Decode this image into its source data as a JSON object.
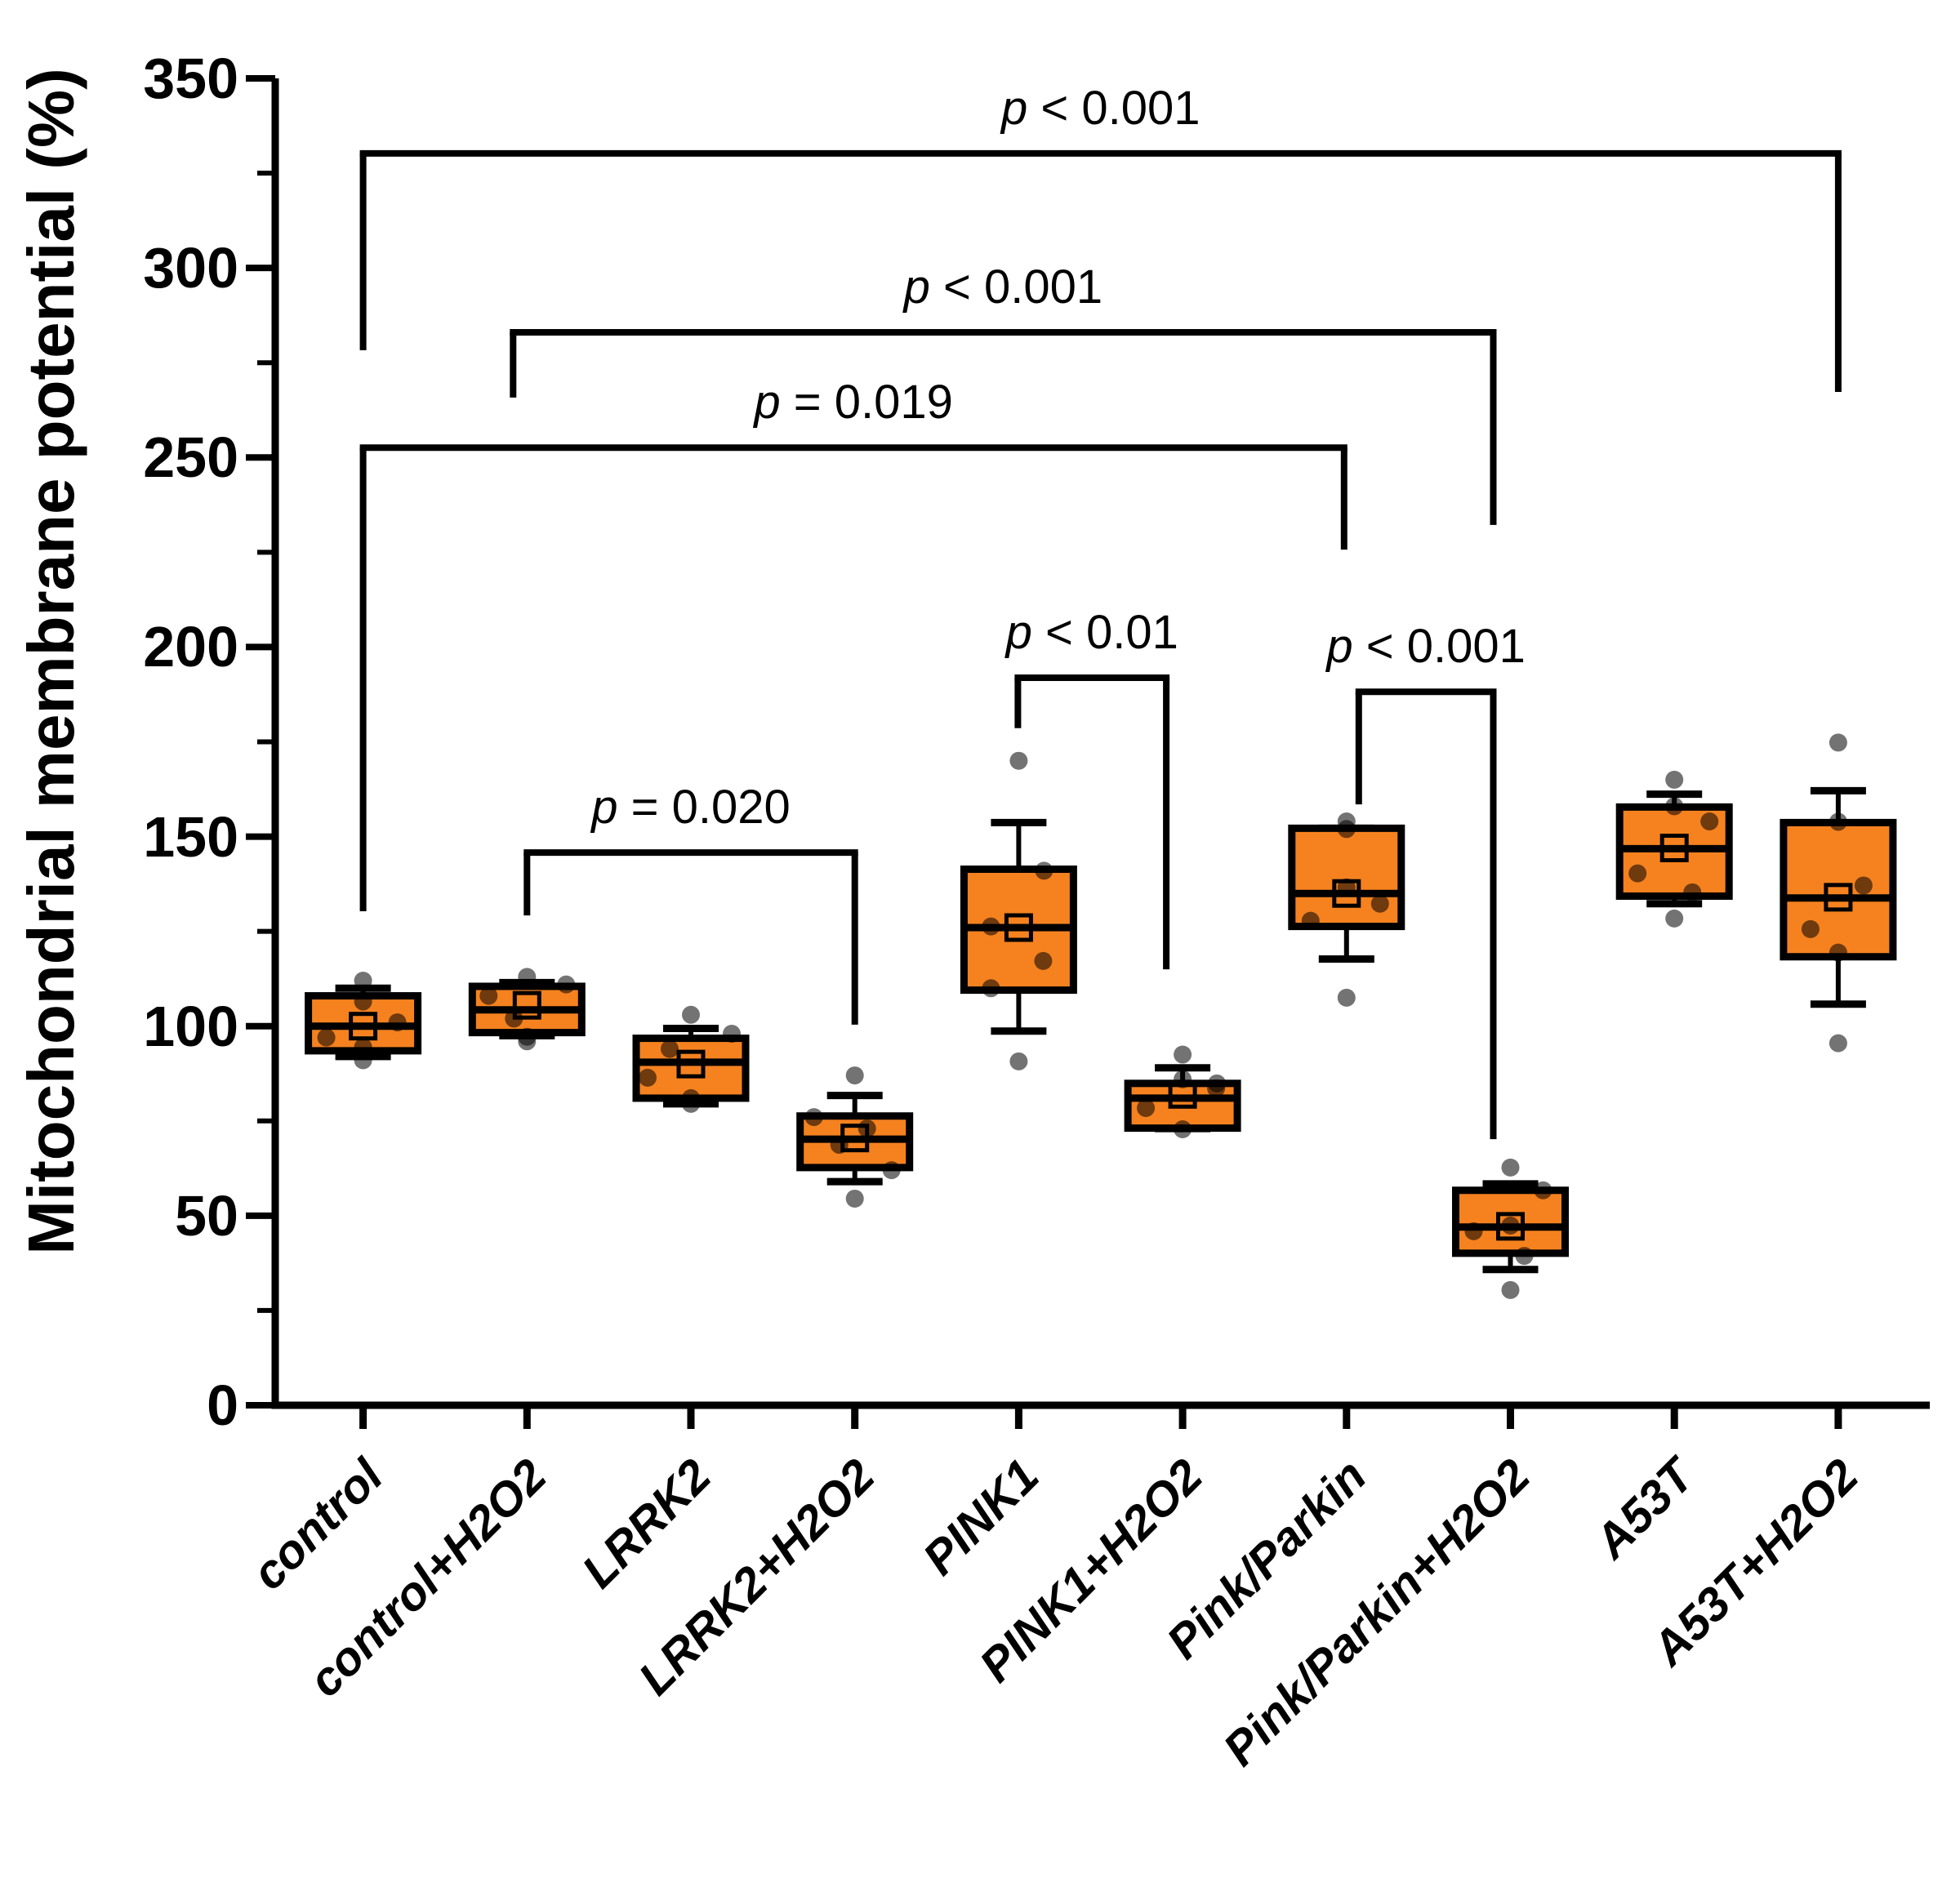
{
  "figure": {
    "background": "#ffffff",
    "line_color": "#000000",
    "box_fill_color": "#F5821F",
    "point_color": "#000000",
    "point_opacity": 0.55
  },
  "chart_data": {
    "type": "box",
    "title": "",
    "xlabel": "",
    "ylabel": "Mitochondrial membrane potential (%)",
    "ylim": [
      0,
      350
    ],
    "grid": false,
    "legend": "none",
    "y_ticks": [
      0,
      50,
      100,
      150,
      200,
      250,
      300,
      350
    ],
    "y_minor_ticks": [
      25,
      75,
      125,
      175,
      225,
      275,
      325
    ],
    "categories": [
      "control",
      "control+H2O2",
      "LRRK2",
      "LRRK2+H2O2",
      "PINK1",
      "PINK1+H2O2",
      "Pink/Parkin",
      "Pink/Parkin+H2O2",
      "A53T",
      "A53T+H2O2"
    ],
    "series": [
      {
        "label": "control",
        "q1": 93.5,
        "median": 100,
        "q3": 108,
        "mean": 100,
        "whisker_low": 92,
        "whisker_high": 110,
        "points": [
          [
            0,
            112
          ],
          [
            0,
            106.5
          ],
          [
            42,
            101
          ],
          [
            -45,
            97
          ],
          [
            0,
            94.5
          ],
          [
            0,
            91
          ]
        ]
      },
      {
        "label": "control+H2O2",
        "q1": 98.3,
        "median": 104.3,
        "q3": 110.5,
        "mean": 105.5,
        "whisker_low": 97.5,
        "whisker_high": 111.5,
        "points": [
          [
            0,
            113
          ],
          [
            48,
            111
          ],
          [
            -47,
            108
          ],
          [
            -16,
            102
          ],
          [
            0,
            97.2
          ],
          [
            0,
            96
          ]
        ]
      },
      {
        "label": "LRRK2",
        "q1": 81,
        "median": 90.5,
        "q3": 96.8,
        "mean": 90,
        "whisker_low": 79.5,
        "whisker_high": 99.4,
        "points": [
          [
            0,
            103
          ],
          [
            50,
            98
          ],
          [
            -26,
            94
          ],
          [
            -53,
            86.4
          ],
          [
            0,
            81
          ],
          [
            0,
            79.5
          ]
        ]
      },
      {
        "label": "LRRK2+H2O2",
        "q1": 62.7,
        "median": 70.2,
        "q3": 76.3,
        "mean": 70.5,
        "whisker_low": 59,
        "whisker_high": 81.7,
        "points": [
          [
            0,
            87
          ],
          [
            -50,
            76
          ],
          [
            15,
            73
          ],
          [
            -19,
            68.7
          ],
          [
            45,
            62
          ],
          [
            0,
            54.5
          ]
        ]
      },
      {
        "label": "PINK1",
        "q1": 109.5,
        "median": 126,
        "q3": 141.4,
        "mean": 126,
        "whisker_low": 98.7,
        "whisker_high": 153.7,
        "points": [
          [
            0,
            170
          ],
          [
            31,
            141
          ],
          [
            -34,
            126.3
          ],
          [
            30,
            117.2
          ],
          [
            -34,
            110
          ],
          [
            0,
            90.7
          ]
        ]
      },
      {
        "label": "PINK1+H2O2",
        "q1": 73.1,
        "median": 81,
        "q3": 84.9,
        "mean": 82,
        "whisker_low": 73,
        "whisker_high": 89,
        "points": [
          [
            0,
            92.5
          ],
          [
            0,
            86
          ],
          [
            42,
            84.9
          ],
          [
            41,
            83.6
          ],
          [
            -45,
            78.4
          ],
          [
            0,
            72.8
          ]
        ]
      },
      {
        "label": "Pink/Parkin",
        "q1": 126.3,
        "median": 135,
        "q3": 152.2,
        "mean": 135,
        "whisker_low": 117.7,
        "whisker_high": 152.2,
        "points": [
          [
            0,
            154
          ],
          [
            0,
            152
          ],
          [
            0,
            136.6
          ],
          [
            41,
            132.3
          ],
          [
            -44,
            127.8
          ],
          [
            0,
            107.5
          ]
        ]
      },
      {
        "label": "Pink/Parkin+H2O2",
        "q1": 40.1,
        "median": 47,
        "q3": 56.7,
        "mean": 47.2,
        "whisker_low": 35.8,
        "whisker_high": 58.4,
        "points": [
          [
            0,
            62.7
          ],
          [
            40,
            56.7
          ],
          [
            0,
            47.4
          ],
          [
            -45,
            45.9
          ],
          [
            17,
            39.4
          ],
          [
            0,
            30.4
          ]
        ]
      },
      {
        "label": "A53T",
        "q1": 134.3,
        "median": 146.8,
        "q3": 157.8,
        "mean": 147,
        "whisker_low": 132.3,
        "whisker_high": 161.2,
        "points": [
          [
            0,
            165
          ],
          [
            0,
            158
          ],
          [
            43,
            154
          ],
          [
            -45,
            140.3
          ],
          [
            22,
            135.3
          ],
          [
            0,
            128.4
          ]
        ]
      },
      {
        "label": "A53T+H2O2",
        "q1": 118.3,
        "median": 133.8,
        "q3": 153.7,
        "mean": 134,
        "whisker_low": 105.8,
        "whisker_high": 162.1,
        "points": [
          [
            0,
            174.8
          ],
          [
            0,
            153.9
          ],
          [
            31,
            137.1
          ],
          [
            -34,
            125.6
          ],
          [
            0,
            119.4
          ],
          [
            0,
            95.5
          ]
        ]
      }
    ],
    "significance_brackets": [
      {
        "label": "p < 0.001",
        "x1_group": 0,
        "x1_dx": 0,
        "x2_group": 9,
        "x2_dx": 0,
        "bar_y": 330.2,
        "end1_y": 278.3,
        "end2_y": 267.3
      },
      {
        "label": "p < 0.001",
        "x1_group": 1,
        "x1_dx": -17,
        "x2_group": 7,
        "x2_dx": -21,
        "bar_y": 283.0,
        "end1_y": 265.8,
        "end2_y": 232.2
      },
      {
        "label": "p = 0.019",
        "x1_group": 0,
        "x1_dx": 0,
        "x2_group": 6,
        "x2_dx": -3,
        "bar_y": 252.6,
        "end1_y": 130.3,
        "end2_y": 225.7
      },
      {
        "label": "p = 0.020",
        "x1_group": 1,
        "x1_dx": 0,
        "x2_group": 3,
        "x2_dx": 0,
        "bar_y": 145.8,
        "end1_y": 129.2,
        "end2_y": 100.4
      },
      {
        "label": "p < 0.01",
        "x1_group": 4,
        "x1_dx": -1,
        "x2_group": 5,
        "x2_dx": -20,
        "bar_y": 191.9,
        "end1_y": 178.6,
        "end2_y": 115.0
      },
      {
        "label": "p < 0.001",
        "x1_group": 6,
        "x1_dx": 15,
        "x2_group": 7,
        "x2_dx": -21,
        "bar_y": 188.2,
        "end1_y": 158.5,
        "end2_y": 70.2
      }
    ]
  }
}
